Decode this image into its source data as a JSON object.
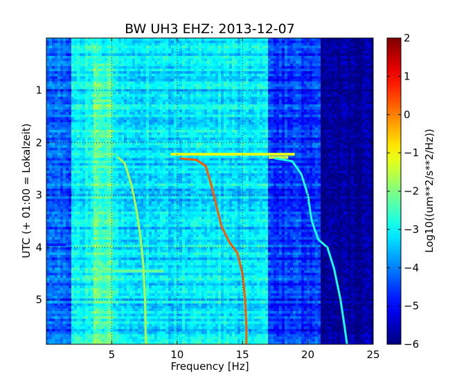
{
  "chart_data": {
    "type": "heatmap",
    "title": "BW UH3 EHZ: 2013-12-07",
    "xlabel": "Frequency [Hz]",
    "ylabel": "UTC (+ 01:00 = Lokalzeit)",
    "xlim": [
      0,
      25
    ],
    "ylim": [
      5.85,
      0
    ],
    "x_ticks": [
      5,
      10,
      15,
      20,
      25
    ],
    "x_tick_labels": [
      "5",
      "10",
      "15",
      "20",
      "25"
    ],
    "y_ticks": [
      1,
      2,
      3,
      4,
      5
    ],
    "y_tick_labels": [
      "1",
      "2",
      "3",
      "4",
      "5"
    ],
    "grid": true,
    "colormap": "jet",
    "colorbar": {
      "label": "Log10((um**2/s**2/Hz))",
      "range": [
        -6,
        2
      ],
      "ticks": [
        2,
        1,
        0,
        -1,
        -2,
        -3,
        -4,
        -5,
        -6
      ],
      "tick_labels": [
        "2",
        "1",
        "0",
        "−1",
        "−2",
        "−3",
        "−4",
        "−5",
        "−6"
      ]
    },
    "background_level": {
      "description_free_note": "",
      "below_2hz": -4.3,
      "hz_2_to_5": -3.0,
      "hz_5_to_17": -3.2,
      "hz_17_to_21": -4.6,
      "above_21hz": -5.8
    },
    "series": [
      {
        "values_x": [
          5.5,
          6.0,
          6.5,
          6.9,
          7.2,
          7.4,
          7.55,
          7.6
        ],
        "values_y": [
          2.28,
          2.4,
          2.8,
          3.3,
          3.8,
          4.3,
          5.0,
          5.85
        ],
        "level": -1.6
      },
      {
        "values_x": [
          10.3,
          11.5,
          12.2,
          12.6,
          13.0,
          13.4,
          14.0,
          14.6,
          15.0,
          15.2,
          15.3,
          15.3
        ],
        "values_y": [
          2.3,
          2.33,
          2.45,
          2.8,
          3.2,
          3.6,
          3.9,
          4.1,
          4.5,
          5.0,
          5.5,
          5.85
        ],
        "level": 0.3
      },
      {
        "values_x": [
          17.5,
          18.8,
          19.5,
          20.0,
          20.3,
          20.8,
          21.5,
          22.0,
          22.5,
          22.8,
          23.0
        ],
        "values_y": [
          2.3,
          2.35,
          2.6,
          3.0,
          3.5,
          3.85,
          4.0,
          4.4,
          5.0,
          5.5,
          5.85
        ],
        "level": -2.8
      }
    ],
    "horizontal_bursts": [
      {
        "y": 2.22,
        "x_from": 9.5,
        "x_to": 19.0,
        "level": -1.2
      },
      {
        "y": 2.28,
        "x_from": 17.0,
        "x_to": 18.5,
        "level": -1.5
      },
      {
        "y": 1.2,
        "x_from": 3.5,
        "x_to": 5.0,
        "level": -2.0
      },
      {
        "y": 4.45,
        "x_from": 5.0,
        "x_to": 9.0,
        "level": -2.2
      },
      {
        "y": 3.95,
        "x_from": 0.0,
        "x_to": 1.5,
        "level": -4.8
      }
    ]
  }
}
